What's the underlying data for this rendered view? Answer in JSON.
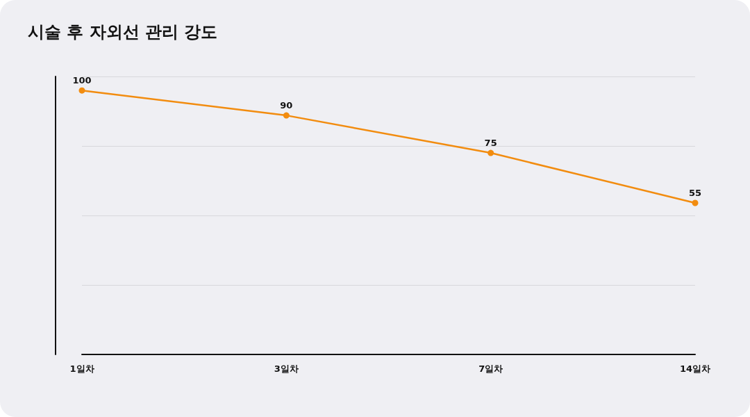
{
  "chart_data": {
    "type": "line",
    "title": "시술 후 자외선 관리 강도",
    "categories": [
      "1일차",
      "3일차",
      "7일차",
      "14일차"
    ],
    "series": [
      {
        "color": "#f28c0f",
        "values": [
          100,
          90,
          75,
          55
        ]
      }
    ],
    "ylim": [
      -5.6,
      105.6
    ],
    "yticks": [
      {
        "value": -5.6,
        "label": null
      },
      {
        "value": 22.2,
        "label": null
      },
      {
        "value": 50,
        "label": null
      },
      {
        "value": 77.8,
        "label": null
      },
      {
        "value": 105.6,
        "label": null
      }
    ],
    "tick_labels": "x",
    "grid": "y",
    "data_labels": true,
    "marker": "circle",
    "line_style": "solid"
  }
}
